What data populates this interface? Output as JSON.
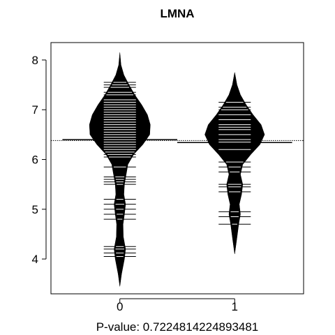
{
  "chart_data": {
    "type": "beanplot",
    "title": "LMNA",
    "xlabel": "P-value: 0.7224814224893481",
    "ylabel": "",
    "categories": [
      "0",
      "1"
    ],
    "xlim": [
      -0.6,
      1.6
    ],
    "ylim": [
      3.3,
      8.35
    ],
    "yticks": [
      4,
      5,
      6,
      7,
      8
    ],
    "overall_mean": 6.38,
    "grid": false,
    "legend": "none",
    "colors": {
      "bean": "#000000",
      "lines": "#ffffff",
      "background": "#ffffff"
    },
    "series": [
      {
        "category": "0",
        "mean": 6.4,
        "density_profile": [
          [
            3.45,
            0.0
          ],
          [
            3.7,
            0.015
          ],
          [
            4.0,
            0.04
          ],
          [
            4.2,
            0.05
          ],
          [
            4.45,
            0.03
          ],
          [
            4.7,
            0.028
          ],
          [
            4.9,
            0.04
          ],
          [
            5.1,
            0.05
          ],
          [
            5.3,
            0.035
          ],
          [
            5.5,
            0.04
          ],
          [
            5.7,
            0.055
          ],
          [
            5.9,
            0.07
          ],
          [
            6.1,
            0.12
          ],
          [
            6.3,
            0.2
          ],
          [
            6.5,
            0.26
          ],
          [
            6.7,
            0.265
          ],
          [
            6.9,
            0.24
          ],
          [
            7.1,
            0.19
          ],
          [
            7.3,
            0.13
          ],
          [
            7.5,
            0.08
          ],
          [
            7.7,
            0.035
          ],
          [
            7.9,
            0.01
          ],
          [
            8.15,
            0.0
          ]
        ],
        "observations": [
          4.05,
          4.12,
          4.2,
          4.25,
          4.8,
          4.9,
          5.0,
          5.1,
          5.2,
          5.5,
          5.55,
          5.6,
          5.65,
          5.85,
          6.05,
          6.1,
          6.15,
          6.2,
          6.25,
          6.3,
          6.35,
          6.4,
          6.45,
          6.5,
          6.55,
          6.6,
          6.65,
          6.7,
          6.75,
          6.8,
          6.85,
          6.9,
          6.95,
          7.0,
          7.05,
          7.1,
          7.15,
          7.2,
          7.3,
          7.35,
          7.45,
          7.5,
          7.55
        ]
      },
      {
        "category": "1",
        "mean": 6.34,
        "density_profile": [
          [
            4.1,
            0.0
          ],
          [
            4.4,
            0.018
          ],
          [
            4.7,
            0.035
          ],
          [
            4.9,
            0.05
          ],
          [
            5.1,
            0.04
          ],
          [
            5.3,
            0.06
          ],
          [
            5.5,
            0.07
          ],
          [
            5.7,
            0.05
          ],
          [
            5.9,
            0.07
          ],
          [
            6.1,
            0.14
          ],
          [
            6.3,
            0.22
          ],
          [
            6.5,
            0.26
          ],
          [
            6.7,
            0.23
          ],
          [
            6.9,
            0.16
          ],
          [
            7.1,
            0.1
          ],
          [
            7.3,
            0.05
          ],
          [
            7.5,
            0.02
          ],
          [
            7.75,
            0.0
          ]
        ],
        "observations": [
          4.7,
          4.85,
          4.95,
          5.35,
          5.45,
          5.5,
          5.75,
          5.85,
          5.95,
          6.2,
          6.35,
          6.4,
          6.5,
          6.6,
          6.65,
          6.7,
          6.8,
          6.9,
          7.0,
          7.05,
          7.15
        ]
      }
    ]
  }
}
